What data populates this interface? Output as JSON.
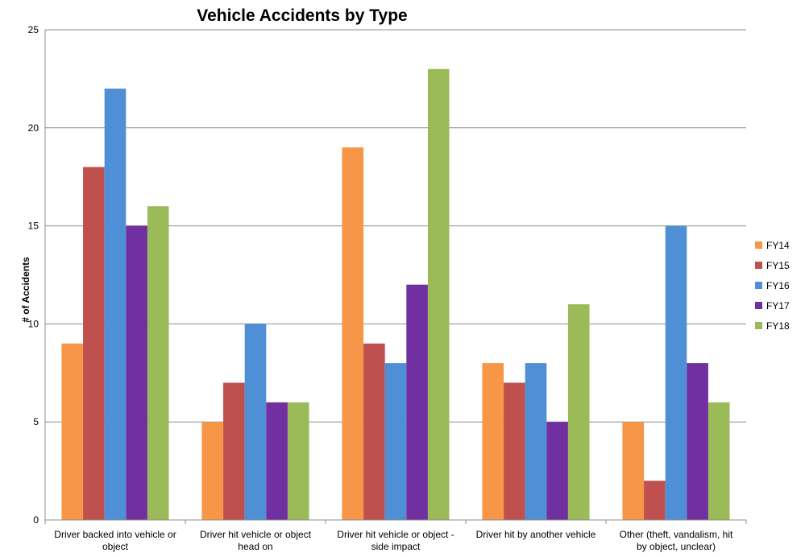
{
  "chart_data": {
    "type": "bar",
    "title": "Vehicle Accidents by Type",
    "xlabel": "",
    "ylabel": "# of Accidents",
    "ylim": [
      0,
      25
    ],
    "yticks": [
      "0",
      "5",
      "10",
      "15",
      "20",
      "25"
    ],
    "grid": true,
    "legend_position": "right",
    "categories": [
      [
        "Driver backed into vehicle or",
        "object"
      ],
      [
        "Driver hit vehicle or object",
        "head on"
      ],
      [
        "Driver hit vehicle or object -",
        "side impact"
      ],
      [
        "Driver hit by another vehicle"
      ],
      [
        "Other (theft, vandalism, hit",
        "by object, unclear)"
      ]
    ],
    "series": [
      {
        "name": "FY14",
        "color": "#f79646",
        "values": [
          9,
          5,
          19,
          8,
          5
        ]
      },
      {
        "name": "FY15",
        "color": "#c0504d",
        "values": [
          18,
          7,
          9,
          7,
          2
        ]
      },
      {
        "name": "FY16",
        "color": "#4f8fd6",
        "values": [
          22,
          10,
          8,
          8,
          15
        ]
      },
      {
        "name": "FY17",
        "color": "#7030a0",
        "values": [
          15,
          6,
          12,
          5,
          8
        ]
      },
      {
        "name": "FY18",
        "color": "#9bbb59",
        "values": [
          16,
          6,
          23,
          11,
          6
        ]
      }
    ]
  }
}
